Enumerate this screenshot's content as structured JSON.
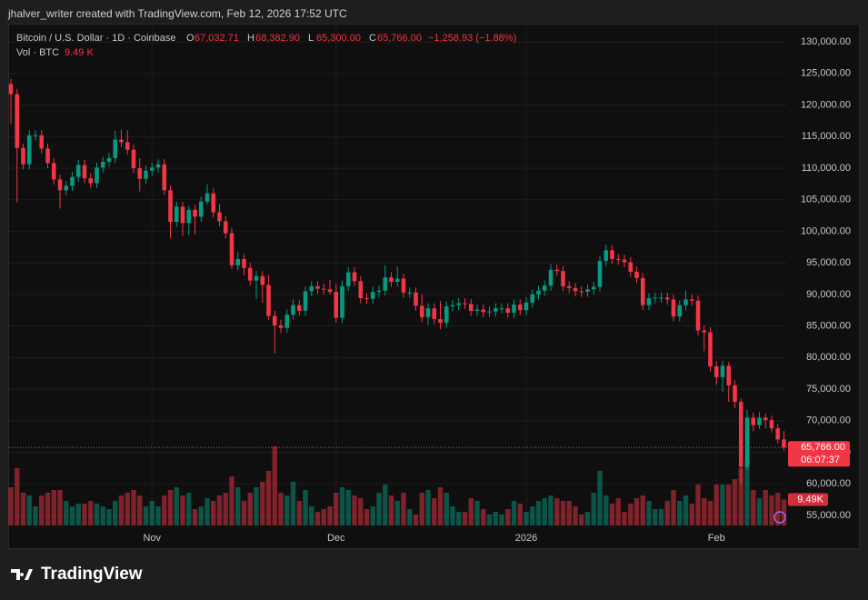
{
  "page": {
    "caption": "jhalver_writer created with TradingView.com, Feb 12, 2026 17:52 UTC",
    "brand": "TradingView"
  },
  "chart_data": {
    "type": "candlestick",
    "title": "Bitcoin / U.S. Dollar · 1D · Coinbase",
    "legend": [
      {
        "key": "O",
        "value": "67,032.71"
      },
      {
        "key": "H",
        "value": "68,382.90"
      },
      {
        "key": "L",
        "value": "65,300.00"
      },
      {
        "key": "C",
        "value": "65,766.00"
      }
    ],
    "change": "−1,258.93 (−1.88%)",
    "volume_title": "Vol · BTC",
    "volume_legend": "9.49 K",
    "up_color": "#089981",
    "down_color": "#f23645",
    "categories": [
      null,
      null,
      null,
      null,
      null,
      null,
      null,
      null,
      null,
      null,
      null,
      null,
      null,
      null,
      null,
      null,
      null,
      null,
      null,
      null,
      null,
      null,
      null,
      "Nov",
      null,
      null,
      null,
      null,
      null,
      null,
      null,
      null,
      null,
      null,
      null,
      null,
      null,
      null,
      null,
      null,
      null,
      null,
      null,
      null,
      null,
      null,
      null,
      null,
      null,
      null,
      null,
      null,
      null,
      "Dec",
      null,
      null,
      null,
      null,
      null,
      null,
      null,
      null,
      null,
      null,
      null,
      null,
      null,
      null,
      null,
      null,
      null,
      null,
      null,
      null,
      null,
      null,
      null,
      null,
      null,
      null,
      null,
      null,
      null,
      null,
      "2026",
      null,
      null,
      null,
      null,
      null,
      null,
      null,
      null,
      null,
      null,
      null,
      null,
      null,
      null,
      null,
      null,
      null,
      null,
      null,
      null,
      null,
      null,
      null,
      null,
      null,
      null,
      null,
      null,
      null,
      null,
      "Feb",
      null,
      null,
      null,
      null,
      null,
      null,
      null,
      null,
      null,
      null,
      null
    ],
    "open": [
      123300,
      121700,
      113200,
      110600,
      115200,
      115200,
      113100,
      110800,
      108200,
      106500,
      107200,
      108600,
      110500,
      108400,
      107600,
      110100,
      111000,
      111600,
      114500,
      114100,
      112900,
      110000,
      108300,
      109600,
      110100,
      110600,
      106500,
      101500,
      103900,
      101300,
      103400,
      102300,
      104700,
      106000,
      103000,
      101600,
      99700,
      94600,
      95600,
      94200,
      92200,
      92900,
      91500,
      86600,
      85100,
      84700,
      86800,
      88300,
      87400,
      90500,
      91300,
      90900,
      90800,
      90400,
      86300,
      91300,
      93500,
      92100,
      89400,
      89300,
      90400,
      90600,
      92700,
      92000,
      92500,
      90300,
      90300,
      88200,
      86400,
      87800,
      86100,
      85500,
      88100,
      88300,
      88600,
      88500,
      87400,
      87600,
      87200,
      87300,
      87800,
      87800,
      87100,
      88400,
      87500,
      88700,
      90000,
      90600,
      91400,
      93900,
      93700,
      91300,
      91000,
      90500,
      90400,
      90800,
      91200,
      95300,
      97000,
      95600,
      95500,
      95100,
      93600,
      92600,
      88300,
      89400,
      89500,
      89500,
      89200,
      86500,
      88300,
      89200,
      89000,
      84300,
      84000,
      78600,
      76900,
      78700,
      75600,
      73000,
      62700,
      70500,
      69300,
      70500,
      70100,
      68800,
      67032.71
    ],
    "high": [
      124100,
      122500,
      113900,
      116000,
      116000,
      116000,
      113900,
      111600,
      109000,
      108000,
      109400,
      111300,
      111300,
      109200,
      110900,
      111800,
      112400,
      115900,
      116100,
      116000,
      113700,
      111600,
      110400,
      110900,
      111400,
      111400,
      107300,
      104700,
      104700,
      104100,
      104200,
      105500,
      107400,
      106800,
      104300,
      102400,
      100500,
      96800,
      96400,
      95000,
      93700,
      93700,
      93100,
      87400,
      86000,
      87600,
      89200,
      89100,
      91300,
      92100,
      92100,
      91700,
      92300,
      91600,
      92200,
      94300,
      94300,
      92900,
      90200,
      91200,
      91400,
      94600,
      93500,
      94400,
      93300,
      91100,
      91100,
      90000,
      88600,
      88600,
      89000,
      88900,
      89100,
      89400,
      89400,
      89300,
      88400,
      88400,
      88100,
      88600,
      88600,
      88600,
      89200,
      89200,
      89500,
      90800,
      91400,
      92200,
      94800,
      94700,
      94500,
      92100,
      91800,
      91300,
      91600,
      92000,
      96100,
      97900,
      97800,
      96400,
      96300,
      95900,
      94400,
      93400,
      90200,
      90300,
      90300,
      90300,
      90000,
      89100,
      90600,
      90000,
      89800,
      85100,
      84800,
      79400,
      79500,
      79300,
      76400,
      73500,
      71700,
      71300,
      71400,
      71100,
      70800,
      69500,
      68382.9
    ],
    "low": [
      117000,
      104600,
      109800,
      109800,
      114400,
      112300,
      110000,
      107400,
      103600,
      105700,
      106400,
      107800,
      107600,
      106800,
      106800,
      109300,
      110200,
      110800,
      113300,
      112100,
      109200,
      106300,
      107500,
      108800,
      109300,
      105700,
      98900,
      100700,
      99300,
      99400,
      99500,
      101500,
      104200,
      102200,
      100800,
      98900,
      94000,
      93800,
      93000,
      91400,
      89300,
      88700,
      86000,
      80600,
      83900,
      83900,
      86000,
      86600,
      86600,
      89700,
      90100,
      90000,
      90000,
      85500,
      85500,
      90500,
      91300,
      88600,
      88500,
      88500,
      89600,
      89800,
      91200,
      91200,
      89500,
      89500,
      87400,
      85600,
      85200,
      85300,
      84500,
      84700,
      87300,
      87500,
      87700,
      86600,
      86600,
      86400,
      86400,
      86500,
      87000,
      86300,
      86300,
      86700,
      86700,
      87900,
      89200,
      89800,
      90600,
      92900,
      90500,
      90200,
      89700,
      89600,
      89600,
      90000,
      90400,
      94500,
      94800,
      94700,
      94300,
      92800,
      91800,
      87500,
      87500,
      88600,
      88700,
      88400,
      85700,
      85700,
      87500,
      88200,
      83500,
      81000,
      77800,
      75700,
      74600,
      73000,
      72000,
      60100,
      62200,
      68300,
      68700,
      68800,
      68100,
      66400,
      65300
    ],
    "close": [
      121700,
      113200,
      110600,
      115200,
      115200,
      113100,
      110800,
      108200,
      106500,
      107200,
      108600,
      110500,
      108400,
      107600,
      110100,
      111000,
      111600,
      114500,
      114100,
      112900,
      110000,
      108300,
      109600,
      110100,
      110600,
      106500,
      101500,
      103900,
      101300,
      103400,
      102300,
      104700,
      106000,
      103000,
      101600,
      99700,
      94600,
      95600,
      94200,
      92200,
      92900,
      91500,
      86600,
      85100,
      84700,
      86800,
      88300,
      87400,
      90500,
      91300,
      90900,
      90800,
      90400,
      86300,
      91300,
      93500,
      92100,
      89400,
      89300,
      90400,
      90600,
      92700,
      92000,
      92500,
      90300,
      90300,
      88200,
      86400,
      87800,
      86100,
      85500,
      88100,
      88300,
      88600,
      88500,
      87400,
      87600,
      87200,
      87300,
      87800,
      87800,
      87100,
      88400,
      87500,
      88700,
      90000,
      90600,
      91400,
      93900,
      93700,
      91300,
      91000,
      90500,
      90400,
      90800,
      91200,
      95300,
      97000,
      95600,
      95500,
      95100,
      93600,
      92600,
      88300,
      89400,
      89500,
      89500,
      89200,
      86500,
      88300,
      89200,
      89000,
      84300,
      84000,
      78600,
      76900,
      78700,
      75600,
      73000,
      62700,
      70500,
      69300,
      70500,
      70100,
      68800,
      67032.71,
      65766
    ],
    "last_price": {
      "value": 65766,
      "label": "65,766.00"
    },
    "countdown": "06:07:37",
    "volume": [
      14000,
      21000,
      12000,
      11000,
      7000,
      11000,
      12000,
      13000,
      13000,
      9000,
      7000,
      8000,
      8000,
      9000,
      8000,
      7000,
      6000,
      9000,
      11000,
      12000,
      13000,
      11000,
      7000,
      9000,
      7000,
      11000,
      13000,
      14000,
      11000,
      12000,
      6000,
      7000,
      10000,
      9000,
      11000,
      12000,
      18000,
      14000,
      9000,
      12000,
      14000,
      16000,
      20000,
      29000,
      12000,
      11000,
      16000,
      9000,
      13000,
      7000,
      5000,
      6000,
      7000,
      12000,
      14000,
      13000,
      11000,
      10000,
      6000,
      7000,
      12000,
      15000,
      11000,
      9000,
      12000,
      6000,
      4000,
      12000,
      13000,
      10000,
      14000,
      12000,
      7000,
      5000,
      5000,
      10000,
      9000,
      6000,
      4000,
      5000,
      4000,
      6000,
      9000,
      8000,
      5000,
      7000,
      9000,
      10000,
      11000,
      10000,
      9000,
      9000,
      7000,
      4000,
      5000,
      12000,
      20000,
      11000,
      8000,
      10000,
      5000,
      8000,
      10000,
      11000,
      9000,
      6000,
      6000,
      9000,
      13000,
      9000,
      11000,
      8000,
      15000,
      10000,
      9000,
      15000,
      15000,
      15000,
      17000,
      21000,
      24000,
      13000,
      10000,
      13000,
      11000,
      12000,
      9490
    ],
    "last_volume": {
      "value": 9490,
      "label": "9.49K"
    },
    "ylim": [
      53130,
      132880
    ],
    "yticks": [
      {
        "value": 55000,
        "label": "55,000.00"
      },
      {
        "value": 60000,
        "label": "60,000.00"
      },
      {
        "value": 65000,
        "label": "65,000.00"
      },
      {
        "value": 70000,
        "label": "70,000.00"
      },
      {
        "value": 75000,
        "label": "75,000.00"
      },
      {
        "value": 80000,
        "label": "80,000.00"
      },
      {
        "value": 85000,
        "label": "85,000.00"
      },
      {
        "value": 90000,
        "label": "90,000.00"
      },
      {
        "value": 95000,
        "label": "95,000.00"
      },
      {
        "value": 100000,
        "label": "100,000.00"
      },
      {
        "value": 105000,
        "label": "105,000.00"
      },
      {
        "value": 110000,
        "label": "110,000.00"
      },
      {
        "value": 115000,
        "label": "115,000.00"
      },
      {
        "value": 120000,
        "label": "120,000.00"
      },
      {
        "value": 125000,
        "label": "125,000.00"
      },
      {
        "value": 130000,
        "label": "130,000.00"
      }
    ],
    "grid": true
  }
}
